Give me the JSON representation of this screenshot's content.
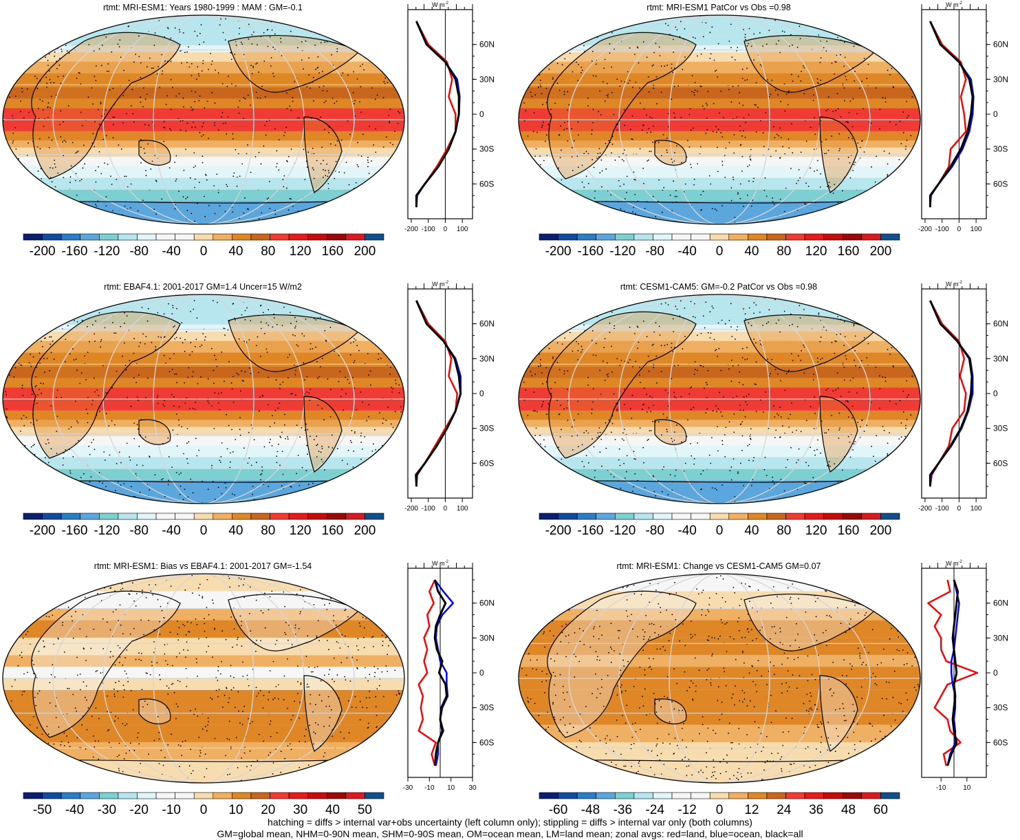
{
  "palette": [
    "#0b1f6e",
    "#124a9e",
    "#2a7cc4",
    "#5ba6dc",
    "#7dcfd1",
    "#b7e6ee",
    "#e2f5f9",
    "#f6f6f6",
    "#f7dcb0",
    "#f0b063",
    "#df8626",
    "#c8661e",
    "#f03a34",
    "#e51a1a",
    "#c40c0c",
    "#9a0808",
    "#d81b21",
    "#c61017",
    "#104e8c"
  ],
  "panels": [
    {
      "title": "rtmt: MRI-ESM1: Years 1980-1999 : MAM : GM=-0.1",
      "ticks": [
        "-200",
        "-160",
        "-120",
        "-80",
        "-40",
        "0",
        "40",
        "80",
        "120",
        "160",
        "200"
      ],
      "prof_ticks": [
        "-200",
        "-100",
        "0",
        "100"
      ],
      "prof_xmin": -220,
      "prof_xmax": 160
    },
    {
      "title": "rtmt: MRI-ESM1 PatCor vs Obs =0.98",
      "ticks": [
        "-200",
        "-160",
        "-120",
        "-80",
        "-40",
        "0",
        "40",
        "80",
        "120",
        "160",
        "200"
      ],
      "prof_ticks": [
        "-200",
        "-100",
        "0",
        "100"
      ],
      "prof_xmin": -220,
      "prof_xmax": 160
    },
    {
      "title": "rtmt: EBAF4.1: 2001-2017 GM=1.4 Uncer=15 W/m2",
      "ticks": [
        "-200",
        "-160",
        "-120",
        "-80",
        "-40",
        "0",
        "40",
        "80",
        "120",
        "160",
        "200"
      ],
      "prof_ticks": [
        "-200",
        "-100",
        "0",
        "100"
      ],
      "prof_xmin": -220,
      "prof_xmax": 160
    },
    {
      "title": "rtmt: CESM1-CAM5: GM=-0.2 PatCor vs Obs =0.98",
      "ticks": [
        "-200",
        "-160",
        "-120",
        "-80",
        "-40",
        "0",
        "40",
        "80",
        "120",
        "160",
        "200"
      ],
      "prof_ticks": [
        "-200",
        "-100",
        "0",
        "100"
      ],
      "prof_xmin": -220,
      "prof_xmax": 160
    },
    {
      "title": "rtmt: MRI-ESM1: Bias vs EBAF4.1: 2001-2017 GM=-1.54",
      "ticks": [
        "-50",
        "-40",
        "-30",
        "-20",
        "-10",
        "0",
        "10",
        "20",
        "30",
        "40",
        "50"
      ],
      "prof_ticks": [
        "-30",
        "-10",
        "10",
        "30"
      ],
      "prof_xmin": -30,
      "prof_xmax": 30
    },
    {
      "title": "rtmt: MRI-ESM1: Change vs CESM1-CAM5 GM=0.07",
      "ticks": [
        "-60",
        "-48",
        "-36",
        "-24",
        "-12",
        "0",
        "12",
        "24",
        "36",
        "48",
        "60"
      ],
      "prof_ticks": [
        "-10",
        "10"
      ],
      "prof_xmin": -25,
      "prof_xmax": 25
    }
  ],
  "profile_unit": "W m",
  "profile_unit_sup": "-2",
  "lat_labels": [
    "60N",
    "30N",
    "0",
    "30S",
    "60S"
  ],
  "chart_data": [
    {
      "type": "heatmap",
      "title": "rtmt: MRI-ESM1: Years 1980-1999 : MAM : GM=-0.1",
      "colorbar_range": [
        -200,
        200
      ],
      "zonal_profile": {
        "lat": [
          80,
          60,
          45,
          30,
          15,
          0,
          -15,
          -30,
          -45,
          -60,
          -70,
          -80
        ],
        "all": [
          -170,
          -110,
          0,
          60,
          80,
          80,
          60,
          20,
          -40,
          -120,
          -170,
          -170
        ],
        "land": [
          -170,
          -100,
          10,
          40,
          20,
          60,
          60,
          10,
          -50,
          -120,
          -170,
          -170
        ],
        "ocean": [
          -170,
          -110,
          0,
          70,
          85,
          80,
          60,
          20,
          -40,
          -120,
          -165,
          -170
        ]
      }
    },
    {
      "type": "heatmap",
      "title": "rtmt: MRI-ESM1 PatCor vs Obs =0.98",
      "colorbar_range": [
        -200,
        200
      ],
      "zonal_profile": {
        "lat": [
          80,
          60,
          45,
          30,
          15,
          0,
          -15,
          -30,
          -45,
          -60,
          -70,
          -80
        ],
        "all": [
          -170,
          -110,
          0,
          60,
          80,
          70,
          50,
          10,
          -50,
          -120,
          -170,
          -170
        ],
        "land": [
          -170,
          -100,
          10,
          40,
          10,
          30,
          40,
          -50,
          -60,
          -120,
          -170,
          -170
        ],
        "ocean": [
          -170,
          -110,
          0,
          70,
          85,
          80,
          60,
          20,
          -40,
          -120,
          -165,
          -170
        ]
      }
    },
    {
      "type": "heatmap",
      "title": "rtmt: EBAF4.1: 2001-2017 GM=1.4 Uncer=15 W/m2",
      "colorbar_range": [
        -200,
        200
      ],
      "zonal_profile": {
        "lat": [
          80,
          60,
          45,
          30,
          15,
          0,
          -15,
          -30,
          -45,
          -60,
          -70,
          -80
        ],
        "all": [
          -170,
          -110,
          -10,
          55,
          80,
          90,
          60,
          10,
          -50,
          -120,
          -170,
          -170
        ],
        "land": [
          -170,
          -100,
          0,
          35,
          20,
          70,
          60,
          0,
          -60,
          -120,
          -175,
          -170
        ],
        "ocean": [
          -170,
          -110,
          -10,
          60,
          90,
          90,
          60,
          10,
          -50,
          -120,
          -165,
          -170
        ]
      }
    },
    {
      "type": "heatmap",
      "title": "rtmt: CESM1-CAM5: GM=-0.2 PatCor vs Obs =0.98",
      "colorbar_range": [
        -200,
        200
      ],
      "zonal_profile": {
        "lat": [
          80,
          60,
          45,
          30,
          15,
          0,
          -15,
          -30,
          -45,
          -60,
          -70,
          -80
        ],
        "all": [
          -170,
          -110,
          -10,
          60,
          75,
          70,
          50,
          10,
          -50,
          -120,
          -170,
          -170
        ],
        "land": [
          -170,
          -100,
          0,
          30,
          5,
          40,
          30,
          -40,
          -60,
          -120,
          -160,
          -170
        ],
        "ocean": [
          -170,
          -110,
          -10,
          65,
          80,
          80,
          55,
          15,
          -45,
          -120,
          -165,
          -170
        ]
      }
    },
    {
      "type": "heatmap",
      "title": "rtmt: MRI-ESM1: Bias vs EBAF4.1: 2001-2017 GM=-1.54",
      "colorbar_range": [
        -50,
        50
      ],
      "zonal_profile": {
        "lat": [
          80,
          70,
          60,
          50,
          40,
          30,
          20,
          10,
          0,
          -10,
          -20,
          -30,
          -40,
          -50,
          -60,
          -70,
          -80
        ],
        "all": [
          -5,
          -2,
          5,
          0,
          -4,
          -5,
          -3,
          2,
          -1,
          5,
          6,
          1,
          0,
          2,
          -2,
          -4,
          -5
        ],
        "land": [
          -5,
          -10,
          -6,
          -12,
          -10,
          -15,
          -12,
          -15,
          -12,
          -20,
          -16,
          -18,
          -16,
          -20,
          -4,
          -8,
          -5
        ],
        "ocean": [
          -5,
          3,
          12,
          2,
          -3,
          -4,
          -2,
          0,
          6,
          6,
          7,
          2,
          0,
          3,
          -2,
          -2,
          -4
        ]
      }
    },
    {
      "type": "heatmap",
      "title": "rtmt: MRI-ESM1: Change vs CESM1-CAM5 GM=0.07",
      "colorbar_range": [
        -60,
        60
      ],
      "zonal_profile": {
        "lat": [
          80,
          70,
          60,
          50,
          40,
          30,
          20,
          10,
          0,
          -10,
          -20,
          -30,
          -40,
          -50,
          -60,
          -70,
          -80
        ],
        "all": [
          0,
          3,
          2,
          1,
          0,
          -1,
          0,
          1,
          2,
          0,
          1,
          0,
          -1,
          0,
          2,
          -2,
          -5
        ],
        "land": [
          -5,
          -3,
          -20,
          -10,
          -15,
          -10,
          -10,
          -6,
          18,
          -5,
          -10,
          -15,
          -5,
          -3,
          5,
          -8,
          -6
        ],
        "ocean": [
          0,
          2,
          4,
          3,
          2,
          1,
          0,
          -2,
          -2,
          -1,
          1,
          1,
          0,
          1,
          1,
          -3,
          -5
        ]
      }
    }
  ],
  "footer_line1": "hatching = diffs > internal var+obs uncertainty (left column only); stippling = diffs > internal var only (both columns)",
  "footer_line2": "GM=global mean, NHM=0-90N mean, SHM=0-90S mean, OM=ocean mean, LM=land mean; zonal avgs: red=land, blue=ocean, black=all"
}
